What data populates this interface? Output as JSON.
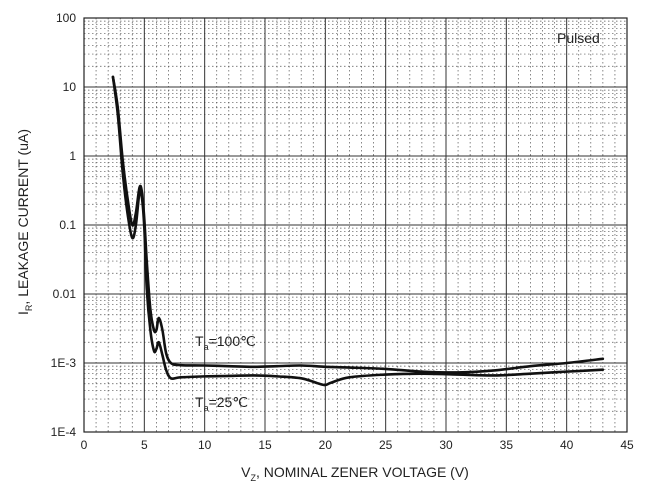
{
  "chart_data": {
    "type": "line",
    "title": "",
    "xlabel_main": "V",
    "xlabel_sub": "Z",
    "xlabel_rest": ", NOMINAL ZENER VOLTAGE (V)",
    "ylabel_main": "I",
    "ylabel_sub": "R",
    "ylabel_rest": ", LEAKAGE CURRENT (uA)",
    "xlim": [
      0,
      45
    ],
    "ylim": [
      0.0001,
      100
    ],
    "yscale": "log",
    "grid": true,
    "x_ticks": [
      "0",
      "5",
      "10",
      "15",
      "20",
      "25",
      "30",
      "35",
      "40",
      "45"
    ],
    "y_ticks": [
      "100",
      "10",
      "1",
      "0.1",
      "0.01",
      "1E-3",
      "1E-4"
    ],
    "annotations": {
      "pulsed": "Pulsed",
      "t100_main": "T",
      "t100_sub": "a",
      "t100_rest": "=100℃",
      "t25_main": "T",
      "t25_sub": "a",
      "t25_rest": "=25℃"
    },
    "series": [
      {
        "label_ref": "t100",
        "color": "#111111",
        "x": [
          2.4,
          2.8,
          3.2,
          3.6,
          4.0,
          4.3,
          4.6,
          4.8,
          5.0,
          5.2,
          5.5,
          5.8,
          6.0,
          6.2,
          6.5,
          6.8,
          7.2,
          8.0,
          10,
          12,
          14,
          16,
          18,
          20,
          22,
          25,
          28,
          31,
          34,
          37,
          40,
          43
        ],
        "y": [
          14,
          5,
          0.9,
          0.25,
          0.1,
          0.15,
          0.35,
          0.3,
          0.12,
          0.03,
          0.006,
          0.003,
          0.003,
          0.0045,
          0.003,
          0.0014,
          0.001,
          0.00093,
          0.00092,
          0.0009,
          0.00088,
          0.0009,
          0.00092,
          0.00088,
          0.00086,
          0.00082,
          0.00075,
          0.00073,
          0.00078,
          0.0009,
          0.001,
          0.00115
        ]
      },
      {
        "label_ref": "t25",
        "color": "#111111",
        "x": [
          2.4,
          2.8,
          3.2,
          3.6,
          4.0,
          4.3,
          4.6,
          4.8,
          5.0,
          5.2,
          5.5,
          5.8,
          6.0,
          6.2,
          6.5,
          6.8,
          7.2,
          8.0,
          10,
          12,
          14,
          16,
          18,
          19.5,
          20,
          20.5,
          22,
          25,
          28,
          31,
          34,
          37,
          40,
          43
        ],
        "y": [
          14,
          4,
          0.6,
          0.15,
          0.065,
          0.1,
          0.3,
          0.25,
          0.09,
          0.012,
          0.003,
          0.0015,
          0.0016,
          0.002,
          0.0013,
          0.0008,
          0.0006,
          0.00062,
          0.00064,
          0.00065,
          0.00066,
          0.00064,
          0.0006,
          0.0005,
          0.00048,
          0.00052,
          0.00062,
          0.00068,
          0.0007,
          0.00068,
          0.00066,
          0.0007,
          0.00075,
          0.0008
        ]
      }
    ]
  }
}
